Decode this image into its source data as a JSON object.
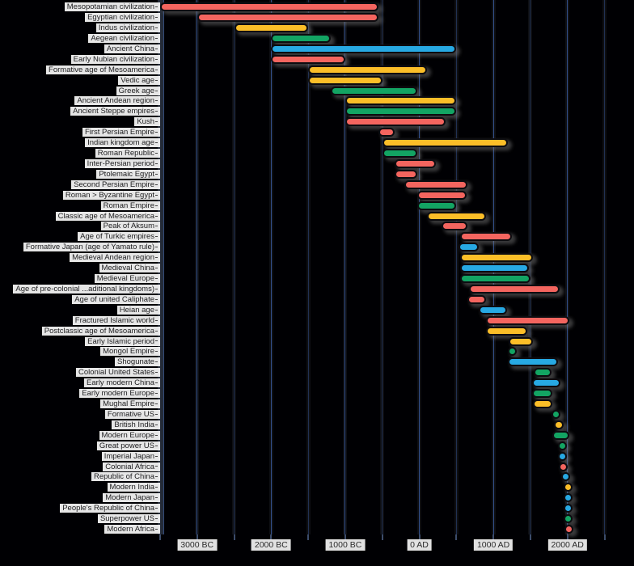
{
  "chart_data": {
    "type": "bar",
    "subtype": "horizontal-timeline-gantt",
    "title": "",
    "xlabel": "",
    "ylabel": "",
    "grid": "vertical, every 500 years",
    "legend_position": "none",
    "x_axis": {
      "tick_labels": [
        "3000 BC",
        "2000 BC",
        "1000 BC",
        "0 AD",
        "1000 AD",
        "2000 AD"
      ],
      "tick_years": [
        -3000,
        -2000,
        -1000,
        0,
        1000,
        2000
      ],
      "minor_grid_step_years": 500,
      "range_years": [
        -3500,
        2900
      ]
    },
    "palette": {
      "red": "#F4655F",
      "yellow": "#FBBE28",
      "green": "#13A463",
      "blue": "#27A9E3"
    },
    "series": [
      {
        "label": "Mesopotamian civilization",
        "start": -3500,
        "end": -550,
        "color": "red"
      },
      {
        "label": "Egyptian civilization",
        "start": -3000,
        "end": -550,
        "color": "red"
      },
      {
        "label": "Indus civilization",
        "start": -2500,
        "end": -1500,
        "color": "yellow"
      },
      {
        "label": "Aegean civilization",
        "start": -2000,
        "end": -1200,
        "color": "green"
      },
      {
        "label": "Ancient China",
        "start": -2000,
        "end": 500,
        "color": "blue"
      },
      {
        "label": "Early Nubian civilization",
        "start": -2000,
        "end": -1000,
        "color": "red"
      },
      {
        "label": "Formative age of Mesoamerica",
        "start": -1500,
        "end": 100,
        "color": "yellow"
      },
      {
        "label": "Vedic age",
        "start": -1500,
        "end": -500,
        "color": "yellow"
      },
      {
        "label": "Greek age",
        "start": -1200,
        "end": -25,
        "color": "green"
      },
      {
        "label": "Ancient Andean region",
        "start": -1000,
        "end": 500,
        "color": "yellow"
      },
      {
        "label": "Ancient Steppe empires",
        "start": -1000,
        "end": 500,
        "color": "green"
      },
      {
        "label": "Kush",
        "start": -1000,
        "end": 350,
        "color": "red"
      },
      {
        "label": "First Persian Empire",
        "start": -550,
        "end": -330,
        "color": "red"
      },
      {
        "label": "Indian kingdom age",
        "start": -500,
        "end": 1200,
        "color": "yellow"
      },
      {
        "label": "Roman Republic",
        "start": -500,
        "end": -25,
        "color": "green"
      },
      {
        "label": "Inter-Persian period",
        "start": -330,
        "end": 220,
        "color": "red"
      },
      {
        "label": "Ptolemaic Egypt",
        "start": -330,
        "end": -30,
        "color": "red"
      },
      {
        "label": "Second Persian Empire",
        "start": -200,
        "end": 650,
        "color": "red"
      },
      {
        "label": "Roman > Byzantine Egypt",
        "start": -30,
        "end": 640,
        "color": "red"
      },
      {
        "label": "Roman Empire",
        "start": -27,
        "end": 500,
        "color": "green"
      },
      {
        "label": "Classic age of Mesoamerica",
        "start": 100,
        "end": 900,
        "color": "yellow"
      },
      {
        "label": "Peak of Aksum",
        "start": 300,
        "end": 650,
        "color": "red"
      },
      {
        "label": "Age of Turkic empires",
        "start": 550,
        "end": 1250,
        "color": "red"
      },
      {
        "label": "Formative Japan (age of Yamato rule)",
        "start": 530,
        "end": 800,
        "color": "blue"
      },
      {
        "label": "Medieval Andean region",
        "start": 550,
        "end": 1530,
        "color": "yellow"
      },
      {
        "label": "Medieval China",
        "start": 550,
        "end": 1480,
        "color": "blue"
      },
      {
        "label": "Medieval Europe",
        "start": 550,
        "end": 1500,
        "color": "green"
      },
      {
        "label": "Age of pre-colonial ...aditional kingdoms)",
        "start": 670,
        "end": 1890,
        "color": "red"
      },
      {
        "label": "Age of united Caliphate",
        "start": 650,
        "end": 900,
        "color": "red"
      },
      {
        "label": "Heian age",
        "start": 800,
        "end": 1190,
        "color": "blue"
      },
      {
        "label": "Fractured Islamic world",
        "start": 900,
        "end": 2020,
        "color": "red"
      },
      {
        "label": "Postclassic age of Mesoamerica",
        "start": 900,
        "end": 1460,
        "color": "yellow"
      },
      {
        "label": "Early Islamic period",
        "start": 1210,
        "end": 1530,
        "color": "yellow"
      },
      {
        "label": "Mongol Empire",
        "start": 1200,
        "end": 1310,
        "color": "green"
      },
      {
        "label": "Shogunate",
        "start": 1200,
        "end": 1870,
        "color": "blue"
      },
      {
        "label": "Colonial United States",
        "start": 1550,
        "end": 1780,
        "color": "green"
      },
      {
        "label": "Early modern China",
        "start": 1520,
        "end": 1910,
        "color": "blue"
      },
      {
        "label": "Early modern Europe",
        "start": 1520,
        "end": 1800,
        "color": "green"
      },
      {
        "label": "Mughal Empire",
        "start": 1530,
        "end": 1800,
        "color": "yellow"
      },
      {
        "label": "Formative US",
        "start": 1780,
        "end": 1890,
        "color": "green"
      },
      {
        "label": "British India",
        "start": 1820,
        "end": 1950,
        "color": "yellow"
      },
      {
        "label": "Modern Europe",
        "start": 1800,
        "end": 2020,
        "color": "green"
      },
      {
        "label": "Great power US",
        "start": 1870,
        "end": 1970,
        "color": "green"
      },
      {
        "label": "Imperial Japan",
        "start": 1870,
        "end": 1950,
        "color": "blue"
      },
      {
        "label": "Colonial Africa",
        "start": 1880,
        "end": 1960,
        "color": "red"
      },
      {
        "label": "Republic of China",
        "start": 1912,
        "end": 1950,
        "color": "blue"
      },
      {
        "label": "Modern India",
        "start": 1950,
        "end": 2020,
        "color": "yellow"
      },
      {
        "label": "Modern Japan",
        "start": 1950,
        "end": 2020,
        "color": "blue"
      },
      {
        "label": "People's Republic of China",
        "start": 1950,
        "end": 2020,
        "color": "blue"
      },
      {
        "label": "Superpower US",
        "start": 1950,
        "end": 2020,
        "color": "green"
      },
      {
        "label": "Modern Africa",
        "start": 1960,
        "end": 2020,
        "color": "red"
      }
    ]
  },
  "colors": {
    "background": "#000003",
    "label_chip_bg": "#F2F2F2",
    "label_text": "#1D1D1F",
    "gridline_blue": "#2C4884",
    "bar_outline": "#0C0C10",
    "bar_shadow": "#808080"
  }
}
